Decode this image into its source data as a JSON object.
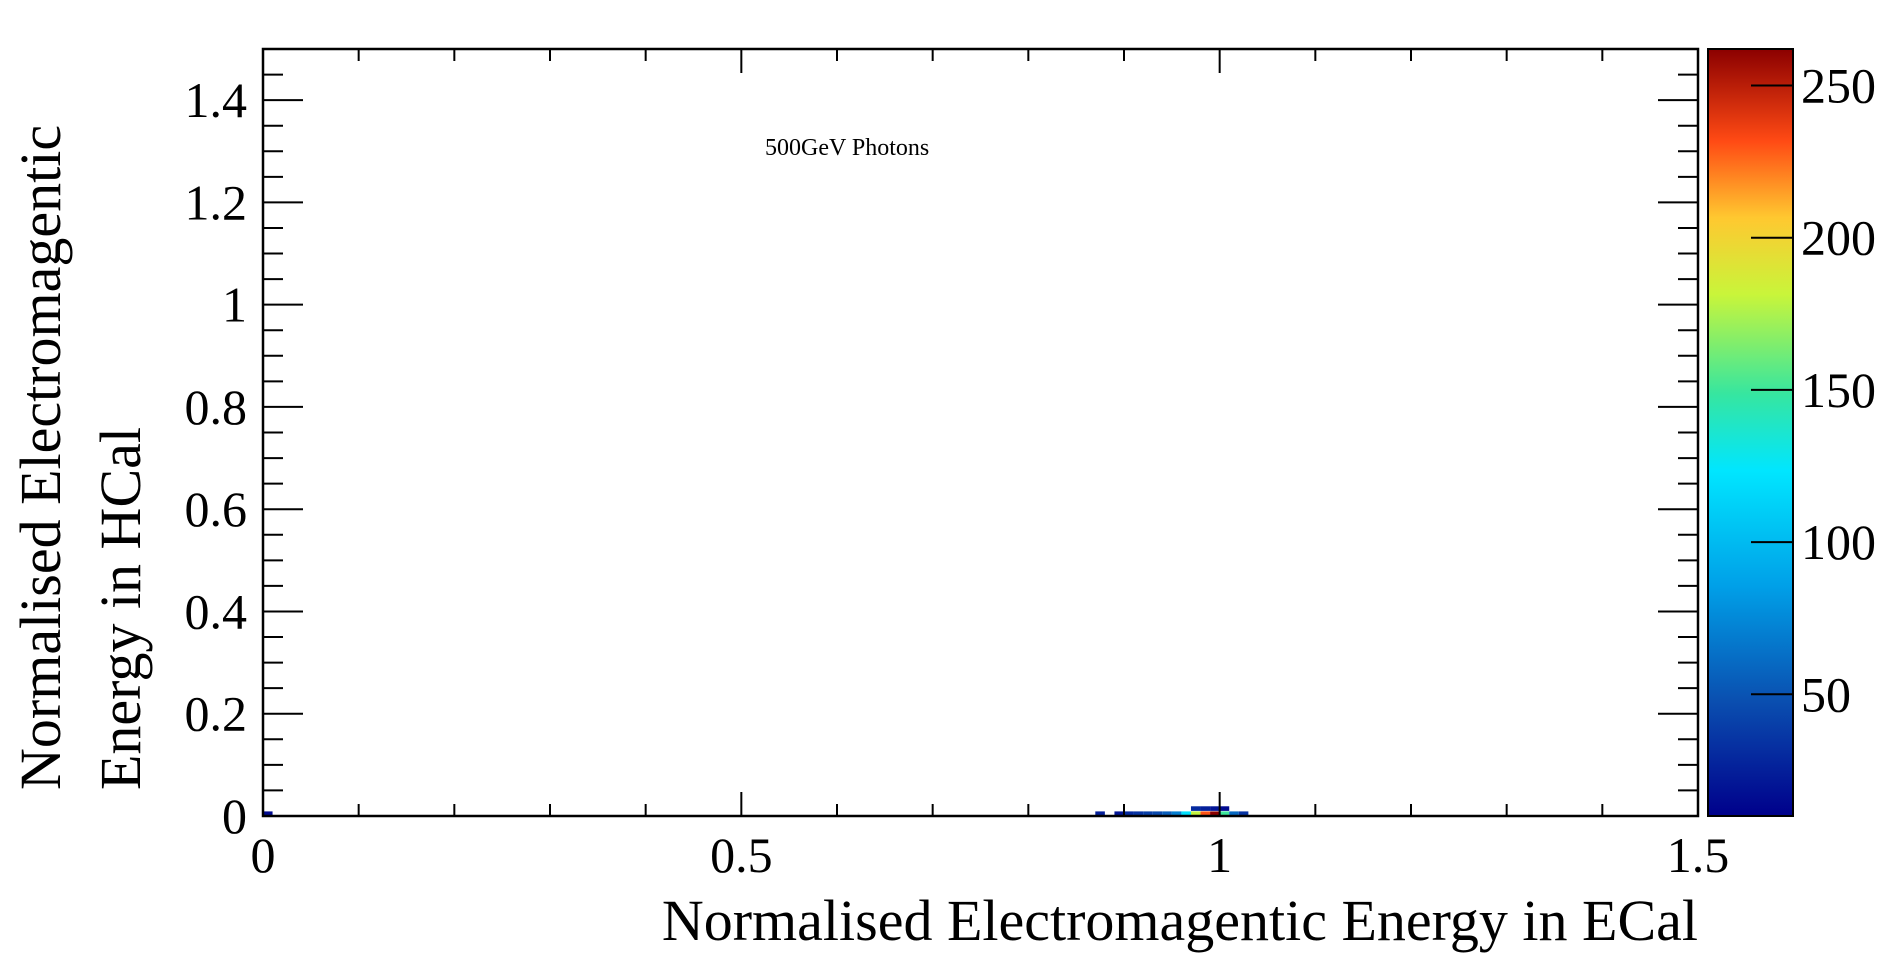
{
  "chart_data": {
    "type": "heatmap",
    "annotation": "500GeV Photons",
    "xlabel": "Normalised Electromagentic Energy in ECal",
    "ylabel_lines": [
      "Normalised Electromagentic",
      "Energy in HCal"
    ],
    "xlim": [
      0,
      1.5
    ],
    "ylim": [
      0,
      1.5
    ],
    "x_ticks": [
      {
        "value": 0,
        "label": "0"
      },
      {
        "value": 0.5,
        "label": "0.5"
      },
      {
        "value": 1,
        "label": "1"
      },
      {
        "value": 1.5,
        "label": "1.5"
      }
    ],
    "y_ticks": [
      {
        "value": 0,
        "label": "0"
      },
      {
        "value": 0.2,
        "label": "0.2"
      },
      {
        "value": 0.4,
        "label": "0.4"
      },
      {
        "value": 0.6,
        "label": "0.6"
      },
      {
        "value": 0.8,
        "label": "0.8"
      },
      {
        "value": 1,
        "label": "1"
      },
      {
        "value": 1.2,
        "label": "1.2"
      },
      {
        "value": 1.4,
        "label": "1.4"
      }
    ],
    "colorbar": {
      "range": [
        10,
        262
      ],
      "ticks": [
        {
          "value": 50,
          "label": "50"
        },
        {
          "value": 100,
          "label": "100"
        },
        {
          "value": 150,
          "label": "150"
        },
        {
          "value": 200,
          "label": "200"
        },
        {
          "value": 250,
          "label": "250"
        }
      ]
    },
    "bin_width": 0.01,
    "bin_height": 0.01,
    "cells": [
      {
        "x": 0.0,
        "y": 0.0,
        "v": 15
      },
      {
        "x": 0.87,
        "y": 0.0,
        "v": 25
      },
      {
        "x": 0.89,
        "y": 0.0,
        "v": 20
      },
      {
        "x": 0.9,
        "y": 0.0,
        "v": 30
      },
      {
        "x": 0.91,
        "y": 0.0,
        "v": 35
      },
      {
        "x": 0.92,
        "y": 0.0,
        "v": 40
      },
      {
        "x": 0.93,
        "y": 0.0,
        "v": 45
      },
      {
        "x": 0.94,
        "y": 0.0,
        "v": 55
      },
      {
        "x": 0.95,
        "y": 0.0,
        "v": 70
      },
      {
        "x": 0.96,
        "y": 0.0,
        "v": 120
      },
      {
        "x": 0.97,
        "y": 0.0,
        "v": 180
      },
      {
        "x": 0.98,
        "y": 0.0,
        "v": 230
      },
      {
        "x": 0.99,
        "y": 0.0,
        "v": 262
      },
      {
        "x": 1.0,
        "y": 0.0,
        "v": 150
      },
      {
        "x": 1.01,
        "y": 0.0,
        "v": 60
      },
      {
        "x": 1.02,
        "y": 0.0,
        "v": 35
      },
      {
        "x": 0.97,
        "y": 0.01,
        "v": 30
      },
      {
        "x": 0.98,
        "y": 0.01,
        "v": 25
      },
      {
        "x": 0.99,
        "y": 0.01,
        "v": 20
      },
      {
        "x": 1.0,
        "y": 0.01,
        "v": 15
      }
    ]
  }
}
